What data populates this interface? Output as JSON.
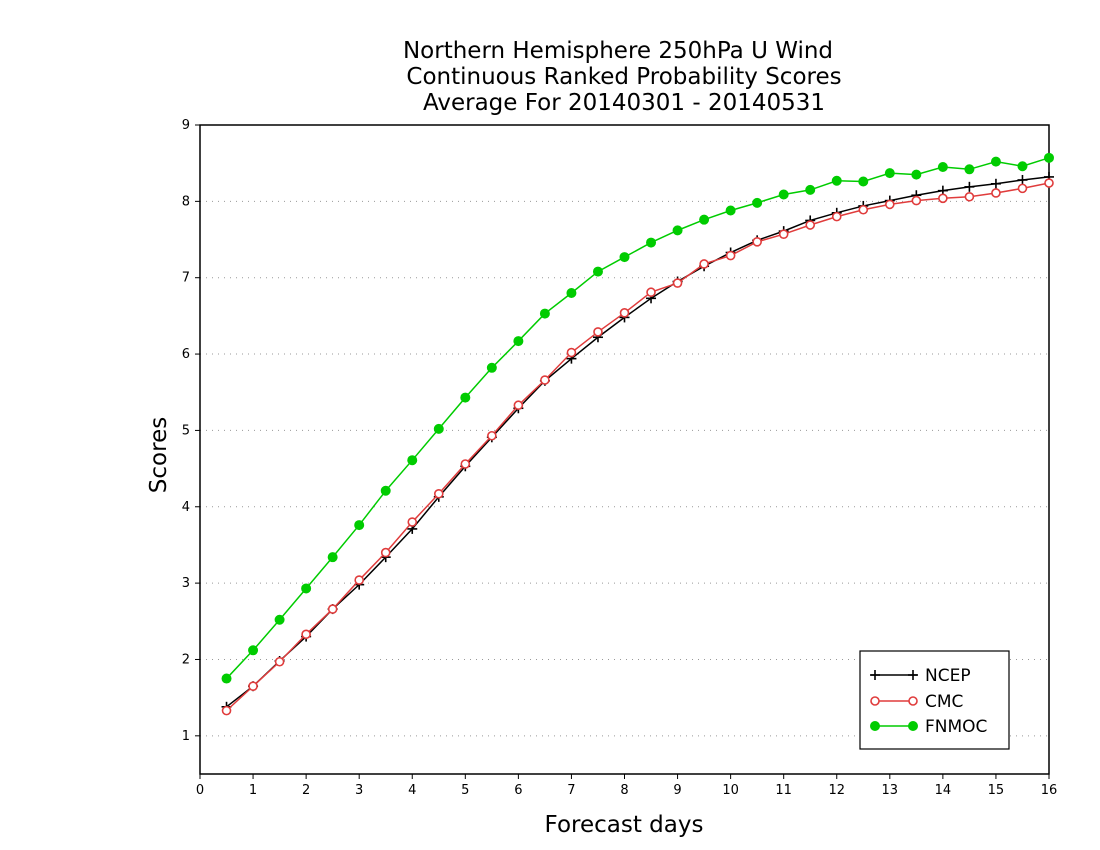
{
  "chart_data": {
    "type": "line",
    "title": [
      "Northern Hemisphere 250hPa U Wind",
      "Continuous Ranked Probability Scores",
      "Average For 20140301 - 20140531"
    ],
    "xlabel": "Forecast days",
    "ylabel": "Scores",
    "xlim": [
      0,
      16
    ],
    "ylim": [
      0.5,
      9
    ],
    "xticks": [
      "0",
      "1",
      "2",
      "3",
      "4",
      "5",
      "6",
      "7",
      "8",
      "9",
      "10",
      "11",
      "12",
      "13",
      "14",
      "15",
      "16"
    ],
    "yticks": [
      "1",
      "2",
      "3",
      "4",
      "5",
      "6",
      "7",
      "8",
      "9"
    ],
    "grid": "horizontal-dotted",
    "legend_position": "bottom-right",
    "x": [
      0.5,
      1,
      1.5,
      2,
      2.5,
      3,
      3.5,
      4,
      4.5,
      5,
      5.5,
      6,
      6.5,
      7,
      7.5,
      8,
      8.5,
      9,
      9.5,
      10,
      10.5,
      11,
      11.5,
      12,
      12.5,
      13,
      13.5,
      14,
      14.5,
      15,
      15.5,
      16
    ],
    "series": [
      {
        "name": "NCEP",
        "color": "#000000",
        "marker": "plus",
        "values": [
          1.38,
          1.65,
          1.98,
          2.3,
          2.66,
          2.98,
          3.34,
          3.71,
          4.13,
          4.53,
          4.91,
          5.29,
          5.65,
          5.94,
          6.22,
          6.48,
          6.73,
          6.95,
          7.15,
          7.33,
          7.49,
          7.61,
          7.75,
          7.85,
          7.94,
          8.01,
          8.08,
          8.14,
          8.19,
          8.23,
          8.28,
          8.32
        ]
      },
      {
        "name": "CMC",
        "color": "#e03c3c",
        "marker": "open-circle",
        "values": [
          1.33,
          1.65,
          1.97,
          2.33,
          2.66,
          3.04,
          3.4,
          3.8,
          4.17,
          4.56,
          4.93,
          5.33,
          5.66,
          6.02,
          6.29,
          6.54,
          6.81,
          6.93,
          7.18,
          7.29,
          7.47,
          7.57,
          7.69,
          7.8,
          7.89,
          7.96,
          8.01,
          8.04,
          8.06,
          8.11,
          8.17,
          8.24
        ]
      },
      {
        "name": "FNMOC",
        "color": "#00cc00",
        "marker": "filled-circle",
        "values": [
          1.75,
          2.12,
          2.52,
          2.93,
          3.34,
          3.76,
          4.21,
          4.61,
          5.02,
          5.43,
          5.82,
          6.17,
          6.53,
          6.8,
          7.08,
          7.27,
          7.46,
          7.62,
          7.76,
          7.88,
          7.98,
          8.09,
          8.15,
          8.27,
          8.26,
          8.37,
          8.35,
          8.45,
          8.42,
          8.52,
          8.46,
          8.57
        ]
      }
    ]
  }
}
